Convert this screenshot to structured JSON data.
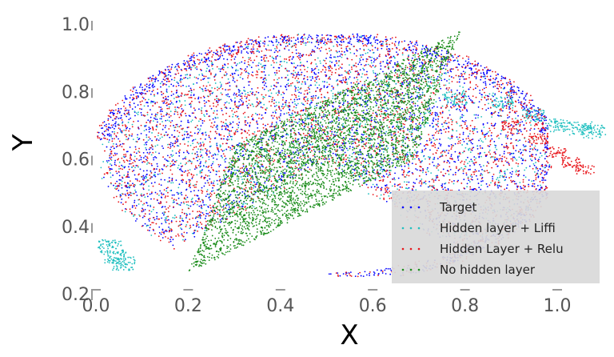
{
  "chart_data": {
    "type": "scatter",
    "title": "",
    "xlabel": "X",
    "ylabel": "Y",
    "xlim": [
      0.0,
      1.1
    ],
    "ylim": [
      0.2,
      1.0
    ],
    "x_ticks": [
      "0.0",
      "0.2",
      "0.4",
      "0.6",
      "0.8",
      "1.0"
    ],
    "y_ticks": [
      "0.2",
      "0.4",
      "0.6",
      "0.8",
      "1.0"
    ],
    "grid": false,
    "legend_position": "bottom-right",
    "series": [
      {
        "name": "Target",
        "color": "#0000ff",
        "shape": "half-ellipse",
        "center": [
          0.52,
          0.52
        ],
        "radius_x": 0.46,
        "radius_y": 0.42,
        "x_range": [
          0.0,
          0.98
        ],
        "y_range": [
          0.25,
          0.96
        ]
      },
      {
        "name": "Hidden layer + Liffi",
        "color": "#1fbfbf",
        "shape": "half-ellipse-with-tails",
        "x_range": [
          0.02,
          1.08
        ],
        "y_range": [
          0.27,
          0.97
        ],
        "tail_points": [
          [
            0.78,
            0.78
          ],
          [
            0.88,
            0.77
          ],
          [
            0.95,
            0.73
          ],
          [
            1.0,
            0.7
          ],
          [
            1.05,
            0.69
          ],
          [
            1.08,
            0.68
          ],
          [
            0.04,
            0.31
          ],
          [
            0.06,
            0.29
          ],
          [
            0.03,
            0.34
          ]
        ]
      },
      {
        "name": "Hidden Layer + Relu",
        "color": "#e8161b",
        "shape": "half-ellipse",
        "x_range": [
          0.0,
          1.06
        ],
        "y_range": [
          0.26,
          0.96
        ],
        "tail_points": [
          [
            0.9,
            0.7
          ],
          [
            0.96,
            0.66
          ],
          [
            1.0,
            0.62
          ],
          [
            1.03,
            0.59
          ],
          [
            1.06,
            0.57
          ]
        ]
      },
      {
        "name": "No hidden layer",
        "color": "#1a8c1a",
        "shape": "parallelogram",
        "vertices": [
          [
            0.2,
            0.26
          ],
          [
            0.3,
            0.64
          ],
          [
            0.77,
            0.97
          ],
          [
            0.69,
            0.6
          ]
        ],
        "x_range": [
          0.2,
          0.77
        ],
        "y_range": [
          0.26,
          0.97
        ]
      }
    ]
  }
}
